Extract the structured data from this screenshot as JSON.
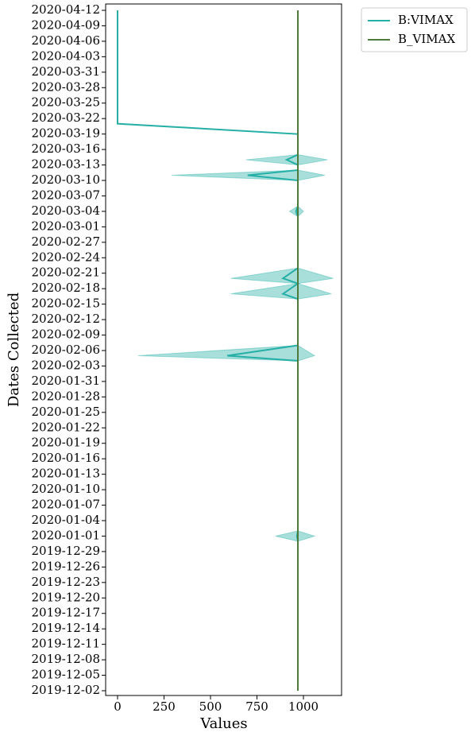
{
  "chart_data": {
    "type": "line",
    "orientation": "horizontal",
    "xlabel": "Values",
    "ylabel": "Dates Collected",
    "xlim": [
      -64,
      1205
    ],
    "xticks": [
      0,
      250,
      500,
      750,
      1000
    ],
    "ylim": [
      "2019-12-02",
      "2020-04-12"
    ],
    "yticks": [
      "2019-12-02",
      "2019-12-05",
      "2019-12-08",
      "2019-12-11",
      "2019-12-14",
      "2019-12-17",
      "2019-12-20",
      "2019-12-23",
      "2019-12-26",
      "2019-12-29",
      "2020-01-01",
      "2020-01-04",
      "2020-01-07",
      "2020-01-10",
      "2020-01-13",
      "2020-01-16",
      "2020-01-19",
      "2020-01-22",
      "2020-01-25",
      "2020-01-28",
      "2020-01-31",
      "2020-02-03",
      "2020-02-06",
      "2020-02-09",
      "2020-02-12",
      "2020-02-15",
      "2020-02-18",
      "2020-02-21",
      "2020-02-24",
      "2020-02-27",
      "2020-03-01",
      "2020-03-04",
      "2020-03-07",
      "2020-03-10",
      "2020-03-13",
      "2020-03-16",
      "2020-03-19",
      "2020-03-22",
      "2020-03-25",
      "2020-03-28",
      "2020-03-31",
      "2020-04-03",
      "2020-04-06",
      "2020-04-09",
      "2020-04-12"
    ],
    "legend": "upper right outside",
    "series": [
      {
        "name": "B:VIMAX",
        "color": "#26afa6",
        "band_opacity": 0.4,
        "x": [
          "2020-04-12",
          "2020-03-21",
          "2020-03-19",
          "2020-03-15",
          "2020-03-14",
          "2020-03-13",
          "2020-03-12",
          "2020-03-11",
          "2020-03-10",
          "2020-03-05",
          "2020-03-04",
          "2020-03-03",
          "2020-02-22",
          "2020-02-20",
          "2020-02-19",
          "2020-02-17",
          "2020-02-16",
          "2020-02-07",
          "2020-02-05",
          "2020-02-04",
          "2020-01-02",
          "2020-01-01",
          "2019-12-31",
          "2019-12-02"
        ],
        "values": [
          0,
          0,
          970,
          970,
          910,
          970,
          970,
          700,
          970,
          970,
          960,
          970,
          970,
          890,
          970,
          890,
          970,
          970,
          590,
          970,
          970,
          965,
          970,
          970
        ],
        "lower": [
          0,
          0,
          970,
          970,
          690,
          970,
          970,
          290,
          970,
          970,
          925,
          970,
          970,
          610,
          970,
          610,
          970,
          970,
          110,
          970,
          970,
          850,
          970,
          970
        ],
        "upper": [
          0,
          0,
          970,
          970,
          1130,
          970,
          970,
          1115,
          970,
          970,
          1000,
          970,
          970,
          1160,
          970,
          1150,
          970,
          970,
          1060,
          970,
          970,
          1060,
          970,
          970
        ]
      },
      {
        "name": "B_VIMAX",
        "color": "#4e7a3c",
        "x": [
          "2019-12-02",
          "2020-04-12"
        ],
        "values": [
          970,
          970
        ]
      }
    ]
  }
}
